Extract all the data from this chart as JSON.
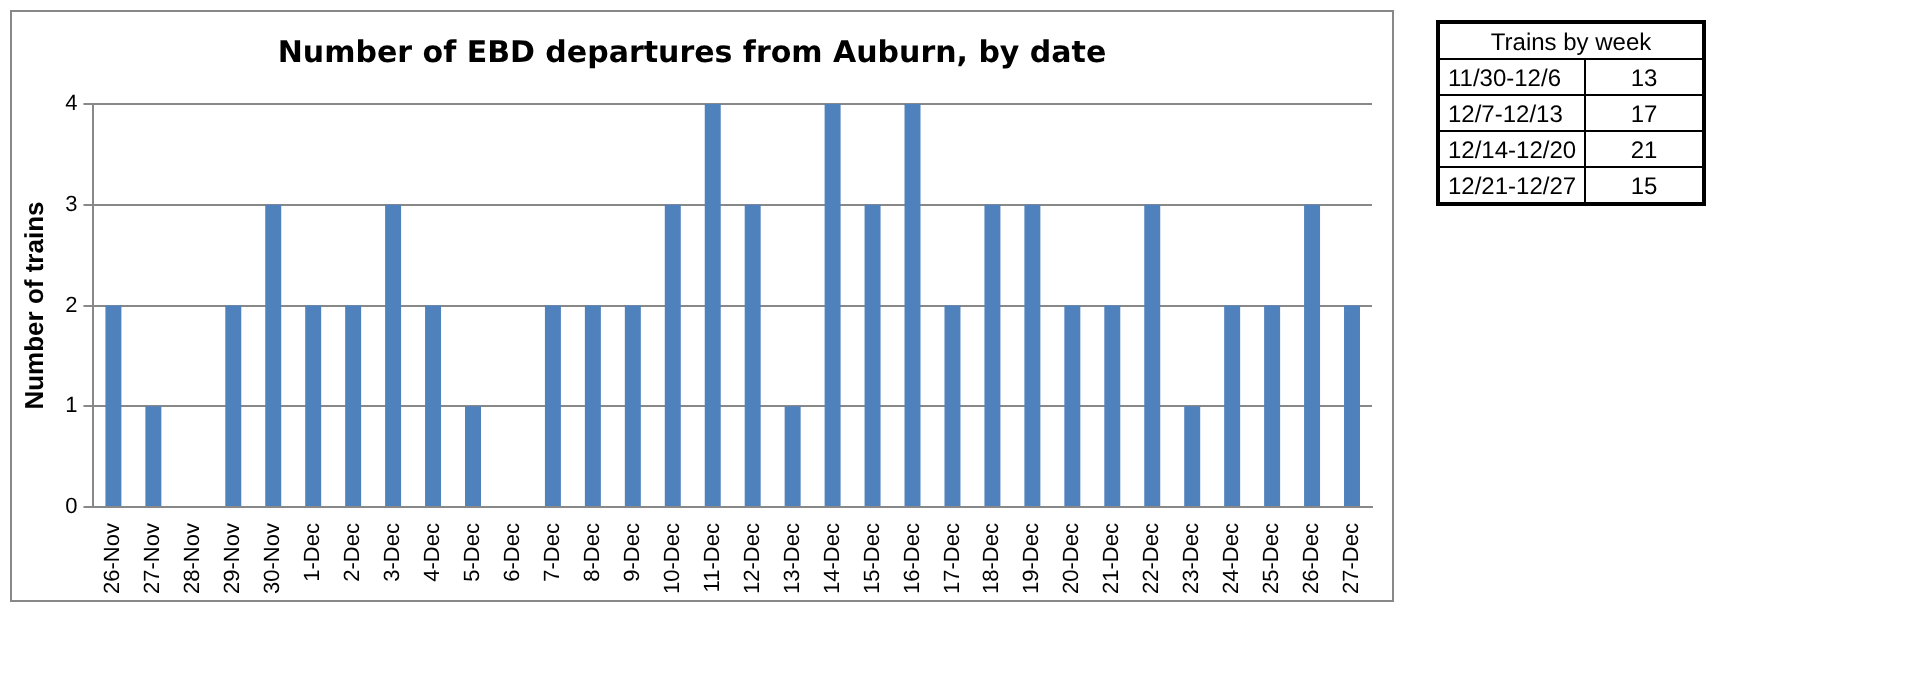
{
  "chart_data": [
    {
      "type": "bar",
      "title": "Number of EBD departures from Auburn, by date",
      "ylabel": "Number of trains",
      "categories": [
        "26-Nov",
        "27-Nov",
        "28-Nov",
        "29-Nov",
        "30-Nov",
        "1-Dec",
        "2-Dec",
        "3-Dec",
        "4-Dec",
        "5-Dec",
        "6-Dec",
        "7-Dec",
        "8-Dec",
        "9-Dec",
        "10-Dec",
        "11-Dec",
        "12-Dec",
        "13-Dec",
        "14-Dec",
        "15-Dec",
        "16-Dec",
        "17-Dec",
        "18-Dec",
        "19-Dec",
        "20-Dec",
        "21-Dec",
        "22-Dec",
        "23-Dec",
        "24-Dec",
        "25-Dec",
        "26-Dec",
        "27-Dec"
      ],
      "values": [
        2,
        1,
        0,
        2,
        3,
        2,
        2,
        3,
        2,
        1,
        0,
        2,
        2,
        2,
        3,
        4,
        3,
        1,
        4,
        3,
        4,
        2,
        3,
        3,
        2,
        2,
        3,
        1,
        2,
        2,
        3,
        2
      ],
      "color": "#4f81bd",
      "ylim": [
        0,
        4
      ],
      "yticks": [
        0,
        1,
        2,
        3,
        4
      ],
      "grid": "y",
      "legend": false
    },
    {
      "type": "other",
      "title": "Trains by week",
      "categories": [
        "11/30-12/6",
        "12/7-12/13",
        "12/14-12/20",
        "12/21-12/27"
      ],
      "values": [
        13,
        17,
        21,
        15
      ],
      "data_labels": true
    }
  ]
}
